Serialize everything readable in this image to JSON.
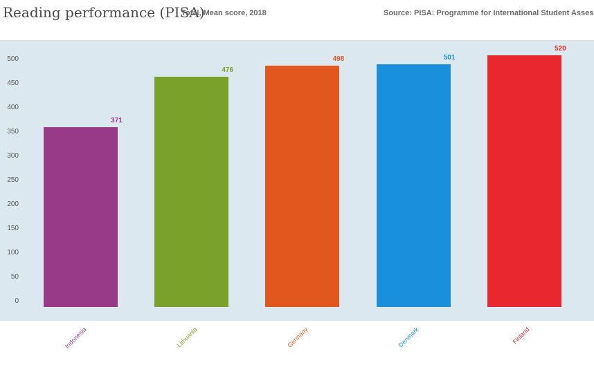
{
  "header": {
    "title": "Reading performance (PISA)",
    "subtitle": "Total, Mean score, 2018",
    "source": "Source: PISA: Programme for International Student Assessment"
  },
  "chart_data": {
    "type": "bar",
    "title": "Reading performance (PISA)",
    "subtitle": "Total, Mean score, 2018",
    "categories": [
      "Indonesia",
      "Lithuania",
      "Germany",
      "Denmark",
      "Finland"
    ],
    "values": [
      371,
      476,
      498,
      501,
      520
    ],
    "colors": [
      "#983a87",
      "#7aa22b",
      "#e2571e",
      "#1a8fdc",
      "#e8282e"
    ],
    "yticks": [
      0,
      50,
      100,
      150,
      200,
      250,
      300,
      350,
      400,
      450,
      500
    ],
    "ylim": [
      0,
      550
    ],
    "xlabel": "",
    "ylabel": "",
    "grid": false,
    "legend": "none"
  }
}
